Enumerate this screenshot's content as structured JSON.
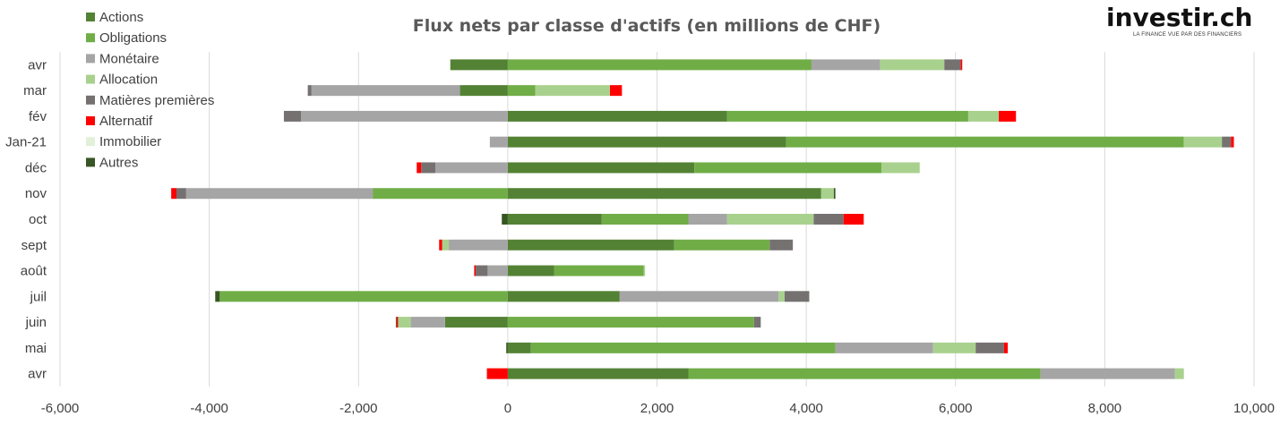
{
  "logo": {
    "text": "investir.ch",
    "tagline": "LA FINANCE VUE PAR DES FINANCIERS"
  },
  "chart_data": {
    "type": "bar",
    "orientation": "horizontal",
    "stacked": true,
    "title": "Flux nets par classe d'actifs (en millions de CHF)",
    "xlabel": "",
    "ylabel": "",
    "xlim": [
      -6000,
      10000
    ],
    "xticks": [
      -6000,
      -4000,
      -2000,
      0,
      2000,
      4000,
      6000,
      8000,
      10000
    ],
    "xtick_labels": [
      "-6,000",
      "-4,000",
      "-2,000",
      "0",
      "2,000",
      "4,000",
      "6,000",
      "8,000",
      "10,000"
    ],
    "grid": "vertical",
    "legend_position": "top-left",
    "categories": [
      "avr",
      "mai",
      "juin",
      "juil",
      "août",
      "sept",
      "oct",
      "nov",
      "déc",
      "Jan-21",
      "fév",
      "mar",
      "avr"
    ],
    "series": [
      {
        "name": "Actions",
        "color": "#548235",
        "values": [
          2420,
          310,
          -840,
          1500,
          620,
          2230,
          1260,
          4200,
          2500,
          3730,
          2940,
          -640,
          -770
        ]
      },
      {
        "name": "Obligations",
        "color": "#70AD47",
        "values": [
          4720,
          4080,
          3300,
          -3860,
          1200,
          1280,
          1160,
          -1810,
          2510,
          5330,
          3230,
          370,
          4070
        ]
      },
      {
        "name": "Monétaire",
        "color": "#A5A5A5",
        "values": [
          1800,
          1310,
          -460,
          2130,
          -270,
          -790,
          520,
          -2500,
          -970,
          -240,
          -2770,
          -1990,
          920
        ]
      },
      {
        "name": "Allocation",
        "color": "#A9D18E",
        "values": [
          120,
          570,
          -170,
          80,
          20,
          -90,
          1160,
          170,
          510,
          510,
          410,
          1000,
          860
        ]
      },
      {
        "name": "Matières premières",
        "color": "#767171",
        "values": [
          0,
          380,
          90,
          330,
          -160,
          310,
          400,
          -130,
          -190,
          120,
          -230,
          -50,
          220
        ]
      },
      {
        "name": "Alternatif",
        "color": "#FF0000",
        "values": [
          -280,
          50,
          -20,
          0,
          -20,
          -40,
          270,
          -70,
          -60,
          40,
          230,
          160,
          20
        ]
      },
      {
        "name": "Immobilier",
        "color": "#E2F0D9",
        "values": [
          0,
          0,
          0,
          0,
          0,
          0,
          0,
          0,
          0,
          0,
          0,
          0,
          0
        ]
      },
      {
        "name": "Autres",
        "color": "#375623",
        "values": [
          0,
          -20,
          -10,
          -60,
          0,
          0,
          -80,
          20,
          0,
          0,
          0,
          0,
          0
        ]
      }
    ]
  }
}
